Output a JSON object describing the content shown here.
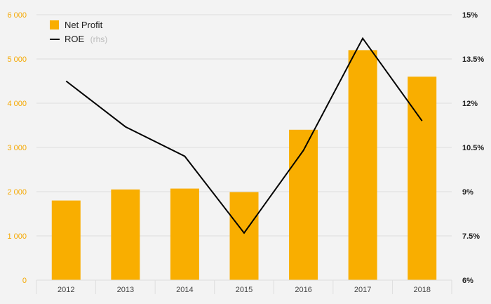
{
  "chart_data": {
    "type": "bar",
    "categories": [
      "2012",
      "2013",
      "2014",
      "2015",
      "2016",
      "2017",
      "2018"
    ],
    "series": [
      {
        "name": "Net Profit",
        "type": "bar",
        "axis": "left",
        "values": [
          1800,
          2050,
          2070,
          1990,
          3400,
          5200,
          4600
        ]
      },
      {
        "name": "ROE",
        "type": "line",
        "axis": "right",
        "values": [
          12.75,
          11.2,
          10.2,
          7.6,
          10.4,
          14.2,
          11.4
        ]
      }
    ],
    "y_left": {
      "min": 0,
      "max": 6000,
      "step": 1000,
      "tick_labels": [
        "0",
        "1 000",
        "2 000",
        "3 000",
        "4 000",
        "5 000",
        "6 000"
      ]
    },
    "y_right": {
      "min": 6,
      "max": 15,
      "tick_labels": [
        "6%",
        "7.5%",
        "9%",
        "10.5%",
        "12%",
        "13.5%",
        "15%"
      ]
    },
    "legend": {
      "placement": "top-left",
      "items": [
        {
          "label": "Net Profit",
          "suffix": ""
        },
        {
          "label": "ROE",
          "suffix": "(rhs)"
        }
      ]
    },
    "grid": true,
    "colors": {
      "bar": "#f9ae00",
      "line": "#000000",
      "left_axis_text": "#f5a800",
      "grid": "#dedede",
      "background": "#f3f3f3"
    }
  }
}
